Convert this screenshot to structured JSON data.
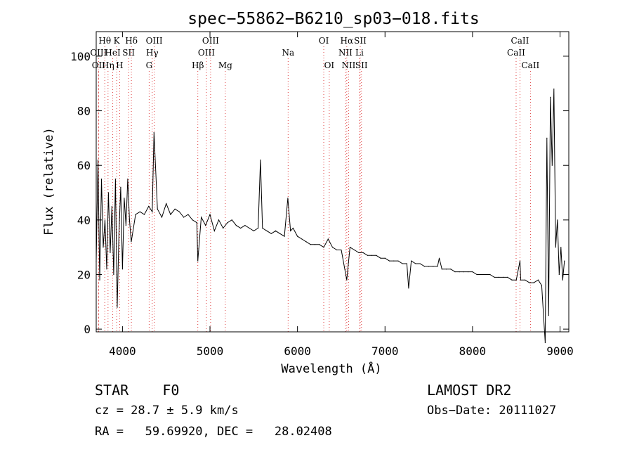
{
  "chart_data": {
    "type": "line",
    "title": "spec−55862−B6210_sp03−018.fits",
    "xlabel": "Wavelength (Å)",
    "ylabel": "Flux (relative)",
    "xlim": [
      3700,
      9100
    ],
    "ylim": [
      -1,
      109
    ],
    "xticks": [
      4000,
      5000,
      6000,
      7000,
      8000,
      9000
    ],
    "yticks": [
      0,
      20,
      40,
      60,
      80,
      100
    ],
    "grid": false,
    "series": [
      {
        "x": [
          3700,
          3720,
          3740,
          3760,
          3780,
          3800,
          3820,
          3840,
          3860,
          3880,
          3900,
          3920,
          3940,
          3960,
          3980,
          4000,
          4020,
          4040,
          4060,
          4080,
          4100,
          4150,
          4200,
          4250,
          4300,
          4340,
          4360,
          4400,
          4450,
          4500,
          4550,
          4600,
          4650,
          4700,
          4750,
          4800,
          4850,
          4861,
          4900,
          4950,
          5000,
          5050,
          5100,
          5150,
          5200,
          5250,
          5300,
          5350,
          5400,
          5450,
          5500,
          5550,
          5577,
          5600,
          5650,
          5700,
          5750,
          5800,
          5850,
          5890,
          5920,
          5950,
          6000,
          6050,
          6100,
          6150,
          6200,
          6250,
          6300,
          6350,
          6400,
          6450,
          6500,
          6563,
          6600,
          6650,
          6700,
          6750,
          6800,
          6850,
          6900,
          6950,
          7000,
          7050,
          7100,
          7150,
          7200,
          7250,
          7270,
          7300,
          7350,
          7400,
          7450,
          7500,
          7550,
          7600,
          7620,
          7650,
          7700,
          7750,
          7800,
          7850,
          7900,
          7950,
          8000,
          8050,
          8100,
          8150,
          8200,
          8250,
          8300,
          8350,
          8400,
          8450,
          8500,
          8542,
          8550,
          8600,
          8650,
          8700,
          8750,
          8790,
          8830,
          8850,
          8870,
          8890,
          8910,
          8930,
          8950,
          8970,
          8990,
          9010,
          9030,
          9050
        ],
        "y": [
          25,
          62,
          18,
          55,
          30,
          40,
          22,
          50,
          28,
          45,
          20,
          55,
          8,
          35,
          52,
          22,
          48,
          38,
          55,
          40,
          32,
          42,
          43,
          42,
          45,
          43,
          72,
          44,
          41,
          46,
          42,
          44,
          43,
          41,
          42,
          40,
          39,
          25,
          41,
          38,
          42,
          36,
          40,
          37,
          39,
          40,
          38,
          37,
          38,
          37,
          36,
          37,
          62,
          37,
          36,
          35,
          36,
          35,
          34,
          48,
          36,
          37,
          34,
          33,
          32,
          31,
          31,
          31,
          30,
          33,
          30,
          29,
          29,
          18,
          30,
          29,
          28,
          28,
          27,
          27,
          27,
          26,
          26,
          25,
          25,
          25,
          24,
          24,
          15,
          25,
          24,
          24,
          23,
          23,
          23,
          23,
          26,
          22,
          22,
          22,
          21,
          21,
          21,
          21,
          21,
          20,
          20,
          20,
          20,
          19,
          19,
          19,
          19,
          18,
          18,
          25,
          18,
          18,
          17,
          17,
          18,
          16,
          -5,
          70,
          5,
          85,
          60,
          88,
          30,
          40,
          20,
          30,
          18,
          25
        ]
      }
    ],
    "line_markers": [
      {
        "label": "Hθ",
        "x": 3798,
        "row": 1
      },
      {
        "label": "K",
        "x": 3934,
        "row": 1
      },
      {
        "label": "Hδ",
        "x": 4102,
        "row": 1
      },
      {
        "label": "OIII",
        "x": 4363,
        "row": 1
      },
      {
        "label": "OIII",
        "x": 5007,
        "row": 1
      },
      {
        "label": "OI",
        "x": 6300,
        "row": 1
      },
      {
        "label": "Hα",
        "x": 6563,
        "row": 1
      },
      {
        "label": "SII",
        "x": 6717,
        "row": 1
      },
      {
        "label": "CaII",
        "x": 8542,
        "row": 1
      },
      {
        "label": "OIII",
        "x": 3727,
        "row": 2
      },
      {
        "label": "HeI",
        "x": 3889,
        "row": 2
      },
      {
        "label": "SII",
        "x": 4070,
        "row": 2
      },
      {
        "label": "Hγ",
        "x": 4340,
        "row": 2
      },
      {
        "label": "OIII",
        "x": 4959,
        "row": 2
      },
      {
        "label": "Na",
        "x": 5893,
        "row": 2
      },
      {
        "label": "NII",
        "x": 6548,
        "row": 2
      },
      {
        "label": "Li",
        "x": 6708,
        "row": 2
      },
      {
        "label": "CaII",
        "x": 8498,
        "row": 2
      },
      {
        "label": "OII",
        "x": 3727,
        "row": 3
      },
      {
        "label": "Hη",
        "x": 3835,
        "row": 3
      },
      {
        "label": "H",
        "x": 3968,
        "row": 3
      },
      {
        "label": "G",
        "x": 4305,
        "row": 3
      },
      {
        "label": "Hβ",
        "x": 4861,
        "row": 3
      },
      {
        "label": "Mg",
        "x": 5175,
        "row": 3
      },
      {
        "label": "OI",
        "x": 6363,
        "row": 3
      },
      {
        "label": "NII",
        "x": 6584,
        "row": 3
      },
      {
        "label": "SII",
        "x": 6731,
        "row": 3
      },
      {
        "label": "CaII",
        "x": 8662,
        "row": 3
      }
    ]
  },
  "info": {
    "classification": "STAR    F0",
    "survey": "LAMOST DR2",
    "cz": "cz = 28.7 ± 5.9 km/s",
    "obs_date": "Obs−Date: 20111027",
    "coords": "RA =   59.69920, DEC =   28.02408"
  }
}
